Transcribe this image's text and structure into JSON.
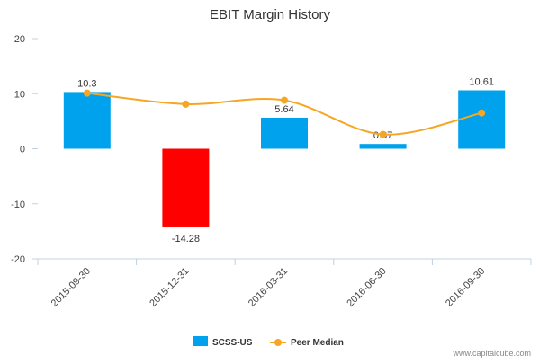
{
  "chart_data": {
    "type": "bar",
    "title": "EBIT Margin History",
    "categories": [
      "2015-09-30",
      "2015-12-31",
      "2016-03-31",
      "2016-06-30",
      "2016-09-30"
    ],
    "series": [
      {
        "name": "SCSS-US",
        "kind": "bar",
        "values": [
          10.3,
          -14.28,
          5.64,
          0.87,
          10.61
        ],
        "labels": [
          "10.3",
          "-14.28",
          "5.64",
          "0.87",
          "10.61"
        ],
        "color": "#00a2ed",
        "negative_color": "#ff0000"
      },
      {
        "name": "Peer Median",
        "kind": "line",
        "values": [
          10.1,
          8.1,
          8.8,
          2.6,
          6.5
        ],
        "color": "#f5a623"
      }
    ],
    "ylim": [
      -20,
      20
    ],
    "yticks": [
      -20,
      -10,
      0,
      10,
      20
    ],
    "grid": false,
    "legend": "bottom"
  },
  "watermark": "www.capitalcube.com"
}
